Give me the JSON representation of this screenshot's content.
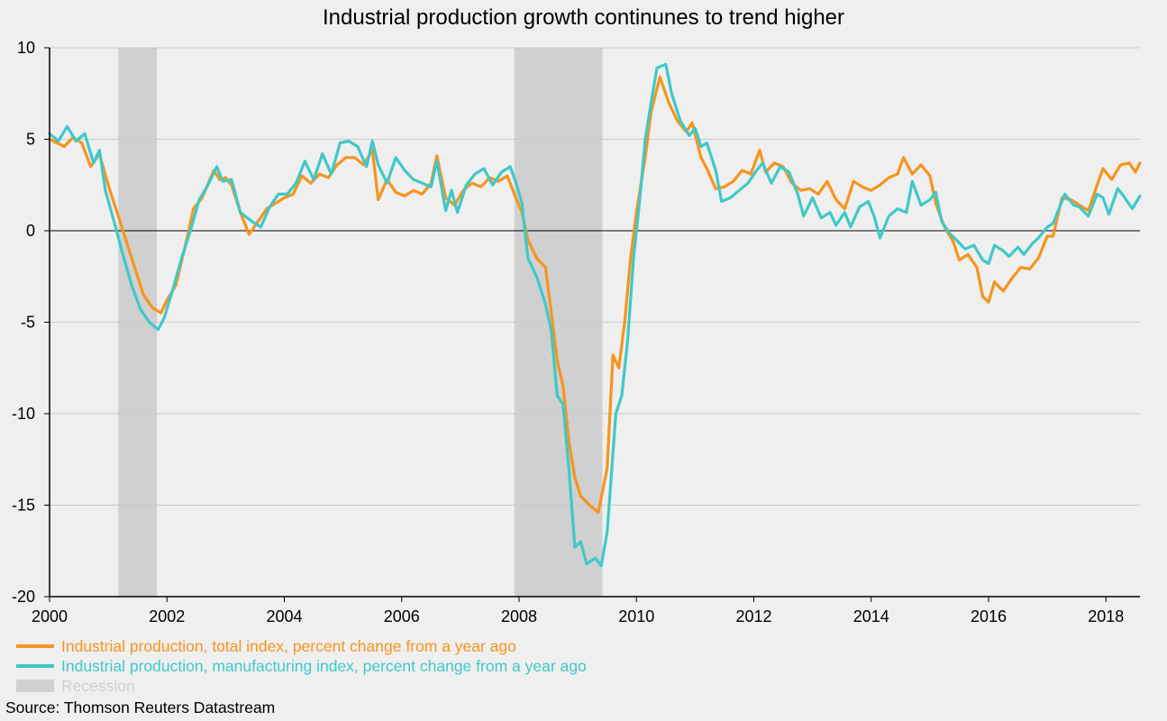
{
  "chart_data": {
    "type": "line",
    "title": "Industrial production growth continunes to trend higher",
    "xlim": [
      2000,
      2018.58
    ],
    "ylim": [
      -20,
      10
    ],
    "x_ticks": [
      "2000",
      "2002",
      "2004",
      "2006",
      "2008",
      "2010",
      "2012",
      "2014",
      "2016",
      "2018"
    ],
    "x_tick_values": [
      2000,
      2002,
      2004,
      2006,
      2008,
      2010,
      2012,
      2014,
      2016,
      2018
    ],
    "y_ticks": [
      "10",
      "5",
      "0",
      "-5",
      "-10",
      "-15",
      "-20"
    ],
    "y_tick_values": [
      10,
      5,
      0,
      -5,
      -10,
      -15,
      -20
    ],
    "grid": "horizontal",
    "legend_position": "bottom-left",
    "recessions": [
      [
        2001.17,
        2001.83
      ],
      [
        2007.92,
        2009.42
      ]
    ],
    "series": [
      {
        "name": "Industrial production, total index, percent change from a year ago",
        "color": "#f7941d",
        "points": [
          [
            2000.0,
            5.0
          ],
          [
            2000.25,
            4.6
          ],
          [
            2000.4,
            5.1
          ],
          [
            2000.55,
            4.8
          ],
          [
            2000.7,
            3.5
          ],
          [
            2000.85,
            4.2
          ],
          [
            2001.0,
            2.5
          ],
          [
            2001.15,
            1.0
          ],
          [
            2001.3,
            -0.5
          ],
          [
            2001.45,
            -2.0
          ],
          [
            2001.6,
            -3.5
          ],
          [
            2001.75,
            -4.2
          ],
          [
            2001.9,
            -4.5
          ],
          [
            2002.0,
            -3.8
          ],
          [
            2002.15,
            -3.0
          ],
          [
            2002.3,
            -1.0
          ],
          [
            2002.45,
            1.2
          ],
          [
            2002.6,
            1.8
          ],
          [
            2002.8,
            3.3
          ],
          [
            2002.9,
            2.8
          ],
          [
            2003.0,
            2.9
          ],
          [
            2003.1,
            2.5
          ],
          [
            2003.25,
            1.0
          ],
          [
            2003.4,
            -0.2
          ],
          [
            2003.55,
            0.5
          ],
          [
            2003.7,
            1.2
          ],
          [
            2003.85,
            1.5
          ],
          [
            2004.0,
            1.8
          ],
          [
            2004.15,
            2.0
          ],
          [
            2004.3,
            3.0
          ],
          [
            2004.45,
            2.6
          ],
          [
            2004.6,
            3.1
          ],
          [
            2004.75,
            2.9
          ],
          [
            2004.9,
            3.6
          ],
          [
            2005.05,
            4.0
          ],
          [
            2005.2,
            4.0
          ],
          [
            2005.35,
            3.6
          ],
          [
            2005.5,
            4.4
          ],
          [
            2005.6,
            1.7
          ],
          [
            2005.75,
            2.8
          ],
          [
            2005.9,
            2.1
          ],
          [
            2006.05,
            1.9
          ],
          [
            2006.2,
            2.2
          ],
          [
            2006.35,
            2.0
          ],
          [
            2006.5,
            2.6
          ],
          [
            2006.6,
            4.1
          ],
          [
            2006.75,
            1.8
          ],
          [
            2006.9,
            1.4
          ],
          [
            2007.05,
            2.2
          ],
          [
            2007.2,
            2.6
          ],
          [
            2007.35,
            2.4
          ],
          [
            2007.5,
            2.9
          ],
          [
            2007.65,
            2.7
          ],
          [
            2007.8,
            3.0
          ],
          [
            2007.92,
            2.0
          ],
          [
            2008.05,
            1.0
          ],
          [
            2008.15,
            -0.5
          ],
          [
            2008.3,
            -1.5
          ],
          [
            2008.45,
            -2.0
          ],
          [
            2008.55,
            -4.5
          ],
          [
            2008.65,
            -7.1
          ],
          [
            2008.75,
            -8.5
          ],
          [
            2008.85,
            -11.5
          ],
          [
            2008.95,
            -13.5
          ],
          [
            2009.05,
            -14.5
          ],
          [
            2009.2,
            -15.0
          ],
          [
            2009.35,
            -15.4
          ],
          [
            2009.5,
            -13.0
          ],
          [
            2009.6,
            -6.8
          ],
          [
            2009.7,
            -7.5
          ],
          [
            2009.8,
            -5.0
          ],
          [
            2009.9,
            -1.5
          ],
          [
            2010.0,
            1.0
          ],
          [
            2010.15,
            4.0
          ],
          [
            2010.25,
            6.5
          ],
          [
            2010.4,
            8.4
          ],
          [
            2010.55,
            7.0
          ],
          [
            2010.7,
            6.0
          ],
          [
            2010.85,
            5.4
          ],
          [
            2010.95,
            5.9
          ],
          [
            2011.1,
            4.0
          ],
          [
            2011.2,
            3.4
          ],
          [
            2011.35,
            2.3
          ],
          [
            2011.5,
            2.4
          ],
          [
            2011.65,
            2.7
          ],
          [
            2011.8,
            3.3
          ],
          [
            2011.95,
            3.1
          ],
          [
            2012.1,
            4.4
          ],
          [
            2012.2,
            3.2
          ],
          [
            2012.35,
            3.7
          ],
          [
            2012.5,
            3.5
          ],
          [
            2012.65,
            2.6
          ],
          [
            2012.8,
            2.2
          ],
          [
            2012.95,
            2.3
          ],
          [
            2013.1,
            2.0
          ],
          [
            2013.25,
            2.7
          ],
          [
            2013.4,
            1.7
          ],
          [
            2013.55,
            1.2
          ],
          [
            2013.7,
            2.7
          ],
          [
            2013.85,
            2.4
          ],
          [
            2014.0,
            2.2
          ],
          [
            2014.15,
            2.5
          ],
          [
            2014.3,
            2.9
          ],
          [
            2014.45,
            3.1
          ],
          [
            2014.55,
            4.0
          ],
          [
            2014.7,
            3.1
          ],
          [
            2014.85,
            3.6
          ],
          [
            2015.0,
            3.0
          ],
          [
            2015.1,
            1.5
          ],
          [
            2015.25,
            0.2
          ],
          [
            2015.4,
            -0.6
          ],
          [
            2015.5,
            -1.6
          ],
          [
            2015.65,
            -1.3
          ],
          [
            2015.8,
            -2.0
          ],
          [
            2015.9,
            -3.6
          ],
          [
            2016.0,
            -3.9
          ],
          [
            2016.1,
            -2.8
          ],
          [
            2016.25,
            -3.3
          ],
          [
            2016.4,
            -2.6
          ],
          [
            2016.55,
            -2.0
          ],
          [
            2016.7,
            -2.1
          ],
          [
            2016.85,
            -1.5
          ],
          [
            2017.0,
            -0.3
          ],
          [
            2017.1,
            -0.3
          ],
          [
            2017.25,
            1.8
          ],
          [
            2017.4,
            1.7
          ],
          [
            2017.55,
            1.4
          ],
          [
            2017.7,
            1.1
          ],
          [
            2017.85,
            2.5
          ],
          [
            2017.95,
            3.4
          ],
          [
            2018.1,
            2.8
          ],
          [
            2018.25,
            3.6
          ],
          [
            2018.4,
            3.7
          ],
          [
            2018.5,
            3.2
          ],
          [
            2018.58,
            3.7
          ]
        ]
      },
      {
        "name": "Industrial production, manufacturing index, percent change from a year ago",
        "color": "#40c8c8",
        "points": [
          [
            2000.0,
            5.3
          ],
          [
            2000.15,
            4.9
          ],
          [
            2000.3,
            5.7
          ],
          [
            2000.45,
            4.9
          ],
          [
            2000.6,
            5.3
          ],
          [
            2000.75,
            3.7
          ],
          [
            2000.85,
            4.4
          ],
          [
            2000.95,
            2.2
          ],
          [
            2001.1,
            0.5
          ],
          [
            2001.25,
            -1.3
          ],
          [
            2001.4,
            -3.0
          ],
          [
            2001.55,
            -4.3
          ],
          [
            2001.7,
            -5.0
          ],
          [
            2001.85,
            -5.4
          ],
          [
            2001.95,
            -4.8
          ],
          [
            2002.1,
            -3.2
          ],
          [
            2002.25,
            -1.5
          ],
          [
            2002.4,
            0.0
          ],
          [
            2002.55,
            1.7
          ],
          [
            2002.7,
            2.5
          ],
          [
            2002.85,
            3.5
          ],
          [
            2002.95,
            2.7
          ],
          [
            2003.1,
            2.8
          ],
          [
            2003.25,
            1.0
          ],
          [
            2003.45,
            0.5
          ],
          [
            2003.6,
            0.2
          ],
          [
            2003.75,
            1.3
          ],
          [
            2003.9,
            2.0
          ],
          [
            2004.05,
            2.0
          ],
          [
            2004.2,
            2.6
          ],
          [
            2004.35,
            3.8
          ],
          [
            2004.5,
            2.8
          ],
          [
            2004.65,
            4.2
          ],
          [
            2004.8,
            3.1
          ],
          [
            2004.95,
            4.8
          ],
          [
            2005.1,
            4.9
          ],
          [
            2005.25,
            4.6
          ],
          [
            2005.4,
            3.5
          ],
          [
            2005.5,
            4.9
          ],
          [
            2005.6,
            3.6
          ],
          [
            2005.75,
            2.6
          ],
          [
            2005.9,
            4.0
          ],
          [
            2006.05,
            3.3
          ],
          [
            2006.2,
            2.8
          ],
          [
            2006.35,
            2.6
          ],
          [
            2006.5,
            2.4
          ],
          [
            2006.6,
            3.8
          ],
          [
            2006.75,
            1.1
          ],
          [
            2006.85,
            2.2
          ],
          [
            2006.95,
            1.0
          ],
          [
            2007.1,
            2.5
          ],
          [
            2007.25,
            3.1
          ],
          [
            2007.4,
            3.4
          ],
          [
            2007.55,
            2.5
          ],
          [
            2007.7,
            3.2
          ],
          [
            2007.85,
            3.5
          ],
          [
            2007.95,
            2.6
          ],
          [
            2008.05,
            1.5
          ],
          [
            2008.15,
            -1.5
          ],
          [
            2008.3,
            -2.5
          ],
          [
            2008.45,
            -4.0
          ],
          [
            2008.55,
            -5.5
          ],
          [
            2008.65,
            -9.0
          ],
          [
            2008.75,
            -9.5
          ],
          [
            2008.85,
            -13.0
          ],
          [
            2008.95,
            -17.3
          ],
          [
            2009.05,
            -17.0
          ],
          [
            2009.15,
            -18.2
          ],
          [
            2009.3,
            -17.9
          ],
          [
            2009.4,
            -18.3
          ],
          [
            2009.5,
            -16.5
          ],
          [
            2009.65,
            -10.0
          ],
          [
            2009.75,
            -9.0
          ],
          [
            2009.85,
            -6.0
          ],
          [
            2009.95,
            -1.5
          ],
          [
            2010.05,
            1.5
          ],
          [
            2010.15,
            5.0
          ],
          [
            2010.25,
            7.0
          ],
          [
            2010.35,
            8.9
          ],
          [
            2010.5,
            9.1
          ],
          [
            2010.6,
            7.5
          ],
          [
            2010.75,
            6.0
          ],
          [
            2010.9,
            5.2
          ],
          [
            2011.0,
            5.6
          ],
          [
            2011.1,
            4.6
          ],
          [
            2011.2,
            4.8
          ],
          [
            2011.35,
            3.3
          ],
          [
            2011.45,
            1.6
          ],
          [
            2011.6,
            1.8
          ],
          [
            2011.75,
            2.2
          ],
          [
            2011.9,
            2.6
          ],
          [
            2012.05,
            3.3
          ],
          [
            2012.15,
            3.7
          ],
          [
            2012.3,
            2.6
          ],
          [
            2012.45,
            3.5
          ],
          [
            2012.6,
            3.2
          ],
          [
            2012.75,
            2.0
          ],
          [
            2012.85,
            0.8
          ],
          [
            2013.0,
            1.8
          ],
          [
            2013.15,
            0.7
          ],
          [
            2013.3,
            1.0
          ],
          [
            2013.4,
            0.3
          ],
          [
            2013.55,
            1.0
          ],
          [
            2013.65,
            0.2
          ],
          [
            2013.8,
            1.3
          ],
          [
            2013.95,
            1.6
          ],
          [
            2014.05,
            0.8
          ],
          [
            2014.15,
            -0.4
          ],
          [
            2014.3,
            0.8
          ],
          [
            2014.45,
            1.2
          ],
          [
            2014.6,
            1.0
          ],
          [
            2014.7,
            2.7
          ],
          [
            2014.85,
            1.4
          ],
          [
            2015.0,
            1.7
          ],
          [
            2015.1,
            2.1
          ],
          [
            2015.2,
            0.5
          ],
          [
            2015.35,
            -0.2
          ],
          [
            2015.45,
            -0.5
          ],
          [
            2015.6,
            -1.0
          ],
          [
            2015.75,
            -0.8
          ],
          [
            2015.9,
            -1.6
          ],
          [
            2016.0,
            -1.8
          ],
          [
            2016.1,
            -0.8
          ],
          [
            2016.25,
            -1.1
          ],
          [
            2016.35,
            -1.4
          ],
          [
            2016.5,
            -0.9
          ],
          [
            2016.6,
            -1.3
          ],
          [
            2016.75,
            -0.7
          ],
          [
            2016.85,
            -0.4
          ],
          [
            2017.0,
            0.2
          ],
          [
            2017.1,
            0.4
          ],
          [
            2017.2,
            1.2
          ],
          [
            2017.3,
            2.0
          ],
          [
            2017.45,
            1.4
          ],
          [
            2017.55,
            1.3
          ],
          [
            2017.7,
            0.8
          ],
          [
            2017.85,
            2.0
          ],
          [
            2017.95,
            1.8
          ],
          [
            2018.05,
            0.9
          ],
          [
            2018.2,
            2.3
          ],
          [
            2018.3,
            1.9
          ],
          [
            2018.45,
            1.2
          ],
          [
            2018.58,
            1.9
          ]
        ]
      }
    ]
  },
  "legend": {
    "items": [
      {
        "label": "Industrial production, total index, percent change from a year ago",
        "color": "#f7941d",
        "kind": "line"
      },
      {
        "label": "Industrial production, manufacturing index, percent change from a year ago",
        "color": "#40c8c8",
        "kind": "line"
      },
      {
        "label": "Recession",
        "color": "#d0d0d0",
        "kind": "box"
      }
    ]
  },
  "source": "Source: Thomson Reuters Datastream"
}
